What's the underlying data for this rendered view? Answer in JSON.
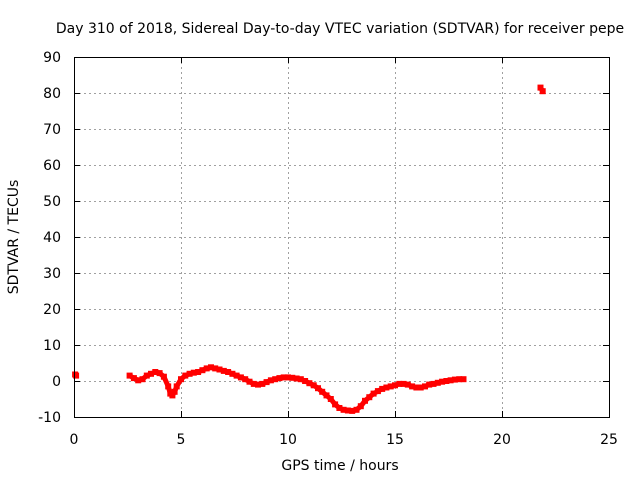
{
  "chart_data": {
    "type": "scatter",
    "title": "Day 310 of 2018, Sidereal Day-to-day VTEC variation (SDTVAR) for receiver pepe",
    "xlabel": "GPS time / hours",
    "ylabel": "SDTVAR / TECUs",
    "xlim": [
      0,
      25
    ],
    "ylim": [
      -10,
      90
    ],
    "xticks": [
      0,
      5,
      10,
      15,
      20,
      25
    ],
    "yticks": [
      -10,
      0,
      10,
      20,
      30,
      40,
      50,
      60,
      70,
      80,
      90
    ],
    "xtick_labels": [
      "0",
      "5",
      "10",
      "15",
      "20",
      "25"
    ],
    "ytick_labels": [
      "-10",
      "0",
      "10",
      "20",
      "30",
      "40",
      "50",
      "60",
      "70",
      "80",
      "90"
    ],
    "grid": true,
    "color": "#ff0000",
    "series": [
      {
        "name": "SDTVAR",
        "x": [
          0.05,
          0.1,
          2.6,
          2.8,
          3.0,
          3.2,
          3.4,
          3.6,
          3.8,
          4.0,
          4.2,
          4.4,
          4.5,
          4.6,
          4.7,
          4.8,
          5.0,
          5.2,
          5.4,
          5.6,
          5.8,
          6.0,
          6.2,
          6.4,
          6.6,
          6.8,
          7.0,
          7.2,
          7.4,
          7.6,
          7.8,
          8.0,
          8.2,
          8.4,
          8.6,
          8.8,
          9.0,
          9.2,
          9.4,
          9.6,
          9.8,
          10.0,
          10.2,
          10.4,
          10.6,
          10.8,
          11.0,
          11.2,
          11.4,
          11.6,
          11.8,
          12.0,
          12.2,
          12.4,
          12.6,
          12.8,
          13.0,
          13.2,
          13.4,
          13.6,
          13.8,
          14.0,
          14.2,
          14.4,
          14.6,
          14.8,
          15.0,
          15.2,
          15.4,
          15.6,
          15.8,
          16.0,
          16.2,
          16.4,
          16.6,
          16.8,
          17.0,
          17.2,
          17.4,
          17.6,
          17.8,
          18.0,
          18.2,
          21.8,
          21.9
        ],
        "y": [
          1.8,
          1.5,
          1.5,
          0.8,
          0.2,
          0.5,
          1.5,
          2.0,
          2.5,
          2.2,
          1.2,
          -1.5,
          -3.5,
          -4.0,
          -3.0,
          -1.5,
          0.5,
          1.5,
          2.0,
          2.3,
          2.5,
          3.0,
          3.5,
          3.8,
          3.5,
          3.2,
          2.8,
          2.5,
          2.0,
          1.5,
          1.0,
          0.5,
          -0.2,
          -0.8,
          -1.0,
          -0.8,
          -0.3,
          0.2,
          0.5,
          0.8,
          1.0,
          1.0,
          0.9,
          0.7,
          0.5,
          0.0,
          -0.6,
          -1.2,
          -2.0,
          -3.0,
          -4.0,
          -5.0,
          -6.5,
          -7.5,
          -8.0,
          -8.2,
          -8.3,
          -8.0,
          -7.0,
          -5.5,
          -4.5,
          -3.5,
          -2.8,
          -2.2,
          -1.8,
          -1.5,
          -1.2,
          -0.8,
          -0.8,
          -1.0,
          -1.5,
          -1.8,
          -1.8,
          -1.5,
          -1.0,
          -0.8,
          -0.5,
          -0.2,
          0.0,
          0.2,
          0.4,
          0.5,
          0.5,
          81.5,
          80.5
        ]
      }
    ]
  }
}
